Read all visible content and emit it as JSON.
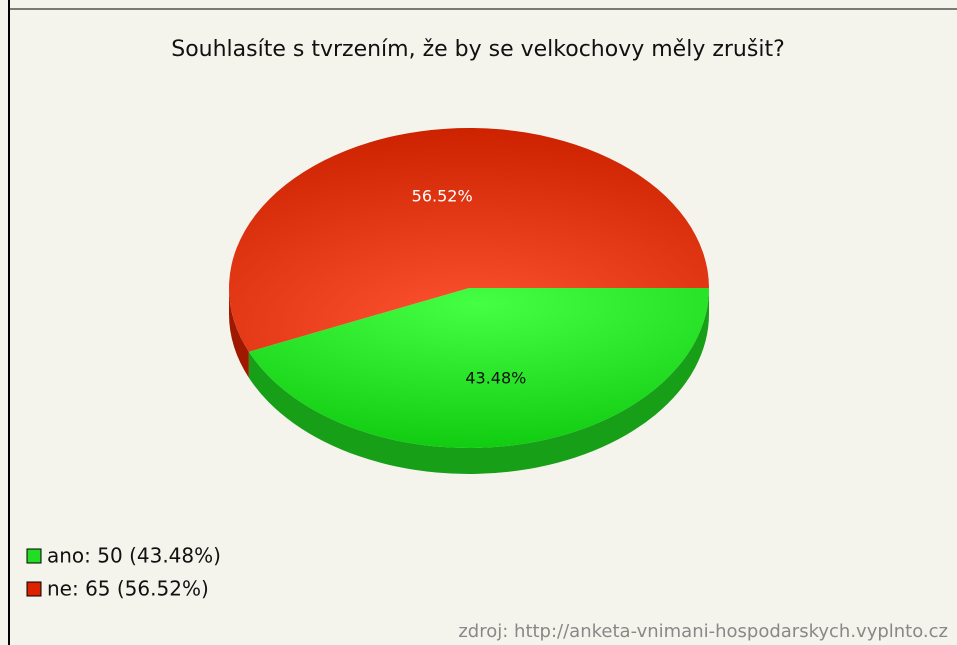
{
  "chart_data": {
    "type": "pie",
    "title": "Souhlasíte s tvrzením, že by se velkochovy měly zrušit?",
    "values": [
      43.48,
      56.52
    ],
    "value_labels": [
      "43.48%",
      "56.52%"
    ],
    "legend": [
      "ano: 50 (43.48%)",
      "ne: 65 (56.52%)"
    ],
    "colors": [
      "#22dd22",
      "#dd2200"
    ],
    "legend_position": "bottom-left",
    "source": "zdroj: http://anketa-vnimani-hospodarskych.vyplnto.cz"
  }
}
